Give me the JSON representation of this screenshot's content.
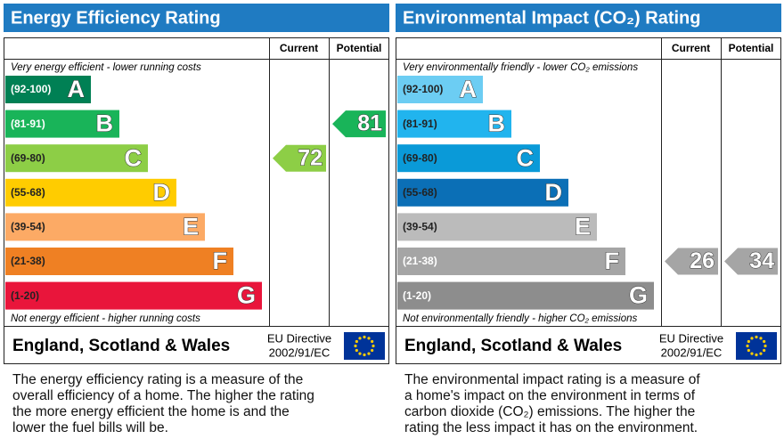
{
  "panels": [
    {
      "title": "Energy Efficiency Rating",
      "current_header": "Current",
      "potential_header": "Potential",
      "top_note": "Very energy efficient - lower running costs",
      "bottom_note": "Not energy efficient - higher running costs",
      "bands": [
        {
          "range": "(92-100)",
          "letter": "A",
          "color": "#008054",
          "text_color": "#ffffff"
        },
        {
          "range": "(81-91)",
          "letter": "B",
          "color": "#19b459",
          "text_color": "#ffffff"
        },
        {
          "range": "(69-80)",
          "letter": "C",
          "color": "#8dce46",
          "text_color": "#222222"
        },
        {
          "range": "(55-68)",
          "letter": "D",
          "color": "#ffcc00",
          "text_color": "#222222"
        },
        {
          "range": "(39-54)",
          "letter": "E",
          "color": "#fcaa65",
          "text_color": "#222222"
        },
        {
          "range": "(21-38)",
          "letter": "F",
          "color": "#ef8023",
          "text_color": "#222222"
        },
        {
          "range": "(1-20)",
          "letter": "G",
          "color": "#e9153b",
          "text_color": "#222222"
        }
      ],
      "current": 72,
      "potential": 81,
      "region": "England, Scotland & Wales",
      "directive": [
        "EU Directive",
        "2002/91/EC"
      ],
      "description": [
        "The energy efficiency rating is a measure of the",
        "overall efficiency of a home. The higher the rating",
        "the more energy efficient the home is and the",
        "lower the fuel bills will be."
      ]
    },
    {
      "title": "Environmental Impact (CO₂) Rating",
      "current_header": "Current",
      "potential_header": "Potential",
      "top_note": "Very environmentally friendly - lower CO₂ emissions",
      "bottom_note": "Not environmentally friendly - higher CO₂ emissions",
      "bands": [
        {
          "range": "(92-100)",
          "letter": "A",
          "color": "#6ccdf3",
          "text_color": "#222222"
        },
        {
          "range": "(81-91)",
          "letter": "B",
          "color": "#21b4ee",
          "text_color": "#222222"
        },
        {
          "range": "(69-80)",
          "letter": "C",
          "color": "#0a9ad8",
          "text_color": "#222222"
        },
        {
          "range": "(55-68)",
          "letter": "D",
          "color": "#0b6fb6",
          "text_color": "#222222"
        },
        {
          "range": "(39-54)",
          "letter": "E",
          "color": "#bbbbbb",
          "text_color": "#222222"
        },
        {
          "range": "(21-38)",
          "letter": "F",
          "color": "#a5a5a5",
          "text_color": "#ffffff"
        },
        {
          "range": "(1-20)",
          "letter": "G",
          "color": "#8d8d8d",
          "text_color": "#ffffff"
        }
      ],
      "current": 26,
      "potential": 34,
      "region": "England, Scotland & Wales",
      "directive": [
        "EU Directive",
        "2002/91/EC"
      ],
      "description": [
        "The environmental impact rating is a measure of",
        "a home's impact on the environment in terms of",
        "carbon dioxide (CO₂) emissions. The higher the",
        "rating the less impact it has on the environment."
      ]
    }
  ]
}
